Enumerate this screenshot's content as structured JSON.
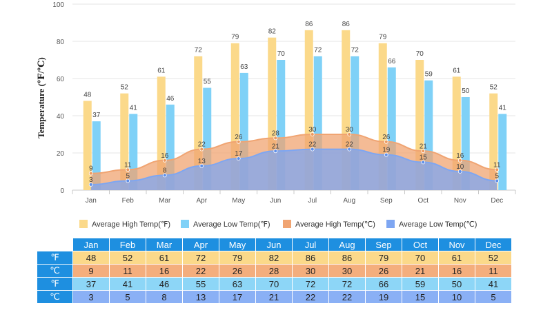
{
  "chart_data": {
    "type": "bar",
    "ylabel": "Temperature (℉/℃)",
    "ylim": [
      0,
      100
    ],
    "yticks": [
      0,
      20,
      40,
      60,
      80,
      100
    ],
    "categories": [
      "Jan",
      "Feb",
      "Mar",
      "Apr",
      "May",
      "Jun",
      "Jul",
      "Aug",
      "Sep",
      "Oct",
      "Nov",
      "Dec"
    ],
    "series": [
      {
        "name": "Average High Temp(℉)",
        "kind": "bar",
        "color": "#fbd98a",
        "values": [
          48,
          52,
          61,
          72,
          79,
          82,
          86,
          86,
          79,
          70,
          61,
          52
        ]
      },
      {
        "name": "Average Low Temp(℉)",
        "kind": "bar",
        "color": "#7fd1f7",
        "values": [
          37,
          41,
          46,
          55,
          63,
          70,
          72,
          72,
          66,
          59,
          50,
          41
        ]
      },
      {
        "name": "Average High Temp(℃)",
        "kind": "area",
        "color": "#f0a472",
        "values": [
          9,
          11,
          16,
          22,
          26,
          28,
          30,
          30,
          26,
          21,
          16,
          11
        ]
      },
      {
        "name": "Average Low Temp(℃)",
        "kind": "area",
        "color": "#7ea6f2",
        "values": [
          3,
          5,
          8,
          13,
          17,
          21,
          22,
          22,
          19,
          15,
          10,
          5
        ]
      }
    ],
    "legend_position": "bottom"
  },
  "table": {
    "rows": [
      {
        "label": "℉",
        "values": [
          "48",
          "52",
          "61",
          "72",
          "79",
          "82",
          "86",
          "86",
          "79",
          "70",
          "61",
          "52"
        ]
      },
      {
        "label": "℃",
        "values": [
          "9",
          "11",
          "16",
          "22",
          "26",
          "28",
          "30",
          "30",
          "26",
          "21",
          "16",
          "11"
        ]
      },
      {
        "label": "℉",
        "values": [
          "37",
          "41",
          "46",
          "55",
          "63",
          "70",
          "72",
          "72",
          "66",
          "59",
          "50",
          "41"
        ]
      },
      {
        "label": "℃",
        "values": [
          "3",
          "5",
          "8",
          "13",
          "17",
          "21",
          "22",
          "22",
          "19",
          "15",
          "10",
          "5"
        ]
      }
    ]
  }
}
